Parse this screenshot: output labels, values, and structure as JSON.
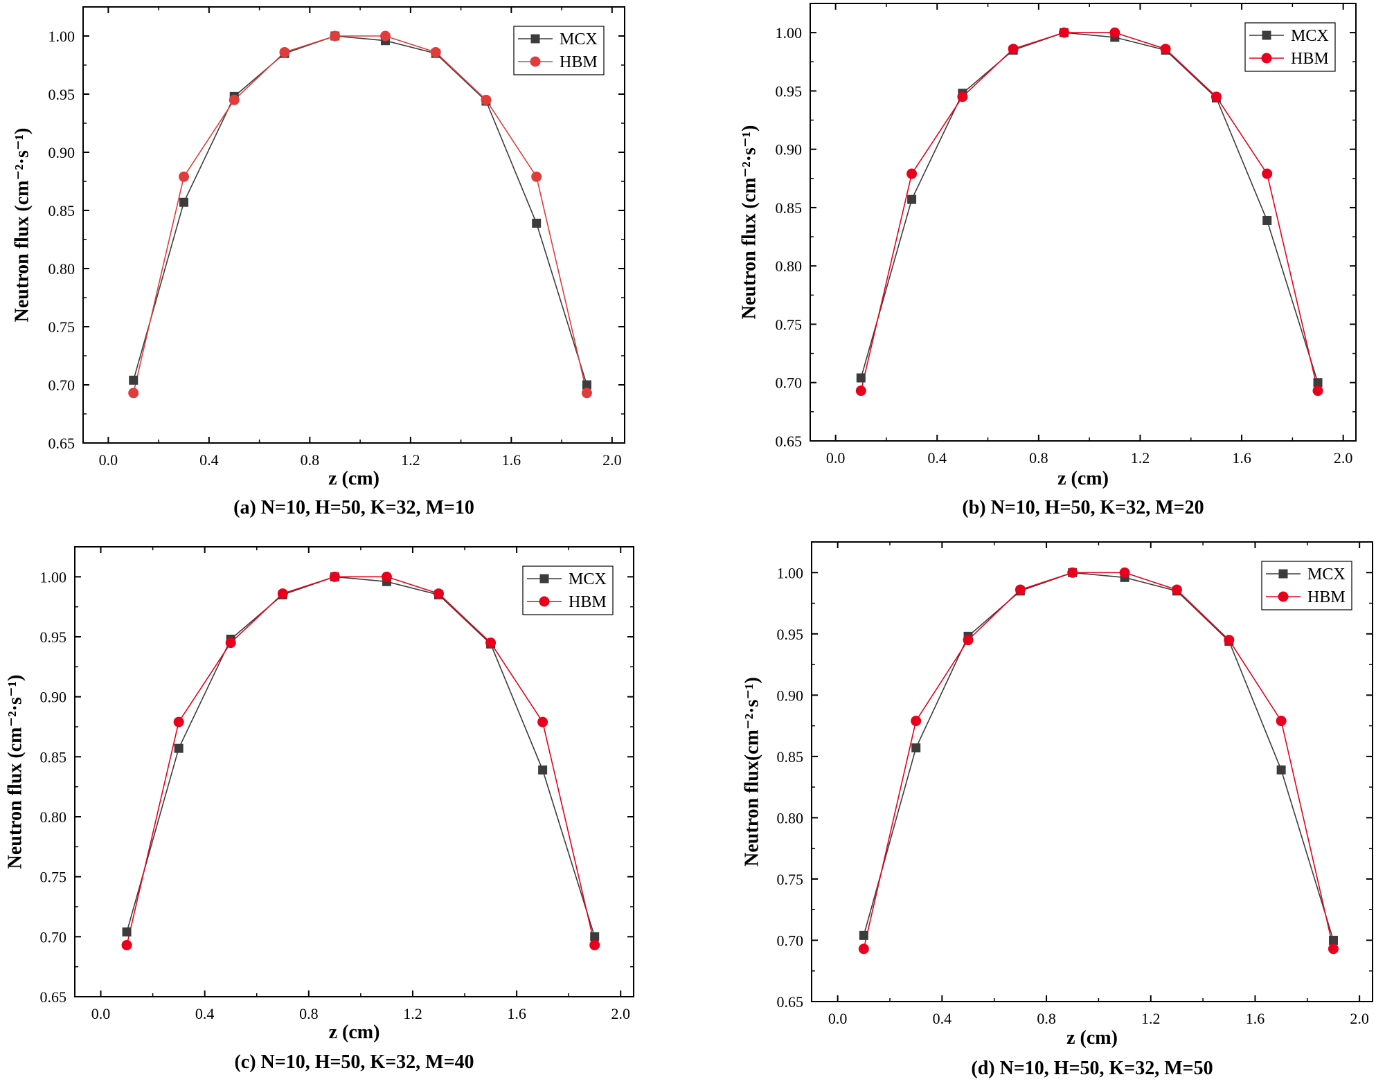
{
  "chart_data": [
    {
      "type": "line",
      "caption": "(a) N=10, H=50, K=32, M=10",
      "xlabel": "z (cm)",
      "ylabel": "Neutron flux (cm⁻²·s⁻¹)",
      "xlim": [
        -0.1,
        2.05
      ],
      "ylim": [
        0.65,
        1.025
      ],
      "xticks": [
        "0.0",
        "0.4",
        "0.8",
        "1.2",
        "1.6",
        "2.0"
      ],
      "yticks": [
        "0.65",
        "0.70",
        "0.75",
        "0.80",
        "0.85",
        "0.90",
        "0.95",
        "1.00"
      ],
      "x": [
        0.1,
        0.3,
        0.5,
        0.7,
        0.9,
        1.1,
        1.3,
        1.5,
        1.7,
        1.9
      ],
      "series": [
        {
          "name": "MCX",
          "color": "#3c3c3c",
          "marker": "square",
          "values": [
            0.704,
            0.857,
            0.948,
            0.985,
            1.0,
            0.996,
            0.985,
            0.944,
            0.839,
            0.7
          ]
        },
        {
          "name": "HBM",
          "color": "#e03c3c",
          "marker": "circle",
          "values": [
            0.693,
            0.879,
            0.945,
            0.986,
            1.0,
            1.0,
            0.986,
            0.945,
            0.879,
            0.693
          ]
        }
      ]
    },
    {
      "type": "line",
      "caption": "(b) N=10, H=50, K=32, M=20",
      "xlabel": "z (cm)",
      "ylabel": "Neutron flux (cm⁻²·s⁻¹)",
      "xlim": [
        -0.1,
        2.05
      ],
      "ylim": [
        0.65,
        1.025
      ],
      "xticks": [
        "0.0",
        "0.4",
        "0.8",
        "1.2",
        "1.6",
        "2.0"
      ],
      "yticks": [
        "0.65",
        "0.70",
        "0.75",
        "0.80",
        "0.85",
        "0.90",
        "0.95",
        "1.00"
      ],
      "x": [
        0.1,
        0.3,
        0.5,
        0.7,
        0.9,
        1.1,
        1.3,
        1.5,
        1.7,
        1.9
      ],
      "series": [
        {
          "name": "MCX",
          "color": "#3c3c3c",
          "marker": "square",
          "values": [
            0.704,
            0.857,
            0.948,
            0.985,
            1.0,
            0.996,
            0.985,
            0.944,
            0.839,
            0.7
          ]
        },
        {
          "name": "HBM",
          "color": "#e8001c",
          "marker": "circle",
          "values": [
            0.693,
            0.879,
            0.945,
            0.986,
            1.0,
            1.0,
            0.986,
            0.945,
            0.879,
            0.693
          ]
        }
      ]
    },
    {
      "type": "line",
      "caption": "(c) N=10, H=50, K=32, M=40",
      "xlabel": "z (cm)",
      "ylabel": "Neutron flux (cm⁻²·s⁻¹)",
      "xlim": [
        -0.1,
        2.05
      ],
      "ylim": [
        0.65,
        1.025
      ],
      "xticks": [
        "0.0",
        "0.4",
        "0.8",
        "1.2",
        "1.6",
        "2.0"
      ],
      "yticks": [
        "0.65",
        "0.70",
        "0.75",
        "0.80",
        "0.85",
        "0.90",
        "0.95",
        "1.00"
      ],
      "x": [
        0.1,
        0.3,
        0.5,
        0.7,
        0.9,
        1.1,
        1.3,
        1.5,
        1.7,
        1.9
      ],
      "series": [
        {
          "name": "MCX",
          "color": "#3c3c3c",
          "marker": "square",
          "values": [
            0.704,
            0.857,
            0.948,
            0.985,
            1.0,
            0.996,
            0.985,
            0.944,
            0.839,
            0.7
          ]
        },
        {
          "name": "HBM",
          "color": "#e8001c",
          "marker": "circle",
          "values": [
            0.693,
            0.879,
            0.945,
            0.986,
            1.0,
            1.0,
            0.986,
            0.945,
            0.879,
            0.693
          ]
        }
      ]
    },
    {
      "type": "line",
      "caption": "(d) N=10, H=50, K=32, M=50",
      "xlabel": "z (cm)",
      "ylabel": "Neutron flux(cm⁻²·s⁻¹)",
      "xlim": [
        -0.1,
        2.05
      ],
      "ylim": [
        0.65,
        1.025
      ],
      "xticks": [
        "0.0",
        "0.4",
        "0.8",
        "1.2",
        "1.6",
        "2.0"
      ],
      "yticks": [
        "0.65",
        "0.70",
        "0.75",
        "0.80",
        "0.85",
        "0.90",
        "0.95",
        "1.00"
      ],
      "x": [
        0.1,
        0.3,
        0.5,
        0.7,
        0.9,
        1.1,
        1.3,
        1.5,
        1.7,
        1.9
      ],
      "series": [
        {
          "name": "MCX",
          "color": "#3c3c3c",
          "marker": "square",
          "values": [
            0.704,
            0.857,
            0.948,
            0.985,
            1.0,
            0.996,
            0.985,
            0.944,
            0.839,
            0.7
          ]
        },
        {
          "name": "HBM",
          "color": "#e8001c",
          "marker": "circle",
          "values": [
            0.693,
            0.879,
            0.945,
            0.986,
            1.0,
            1.0,
            0.986,
            0.945,
            0.879,
            0.693
          ]
        }
      ]
    }
  ]
}
